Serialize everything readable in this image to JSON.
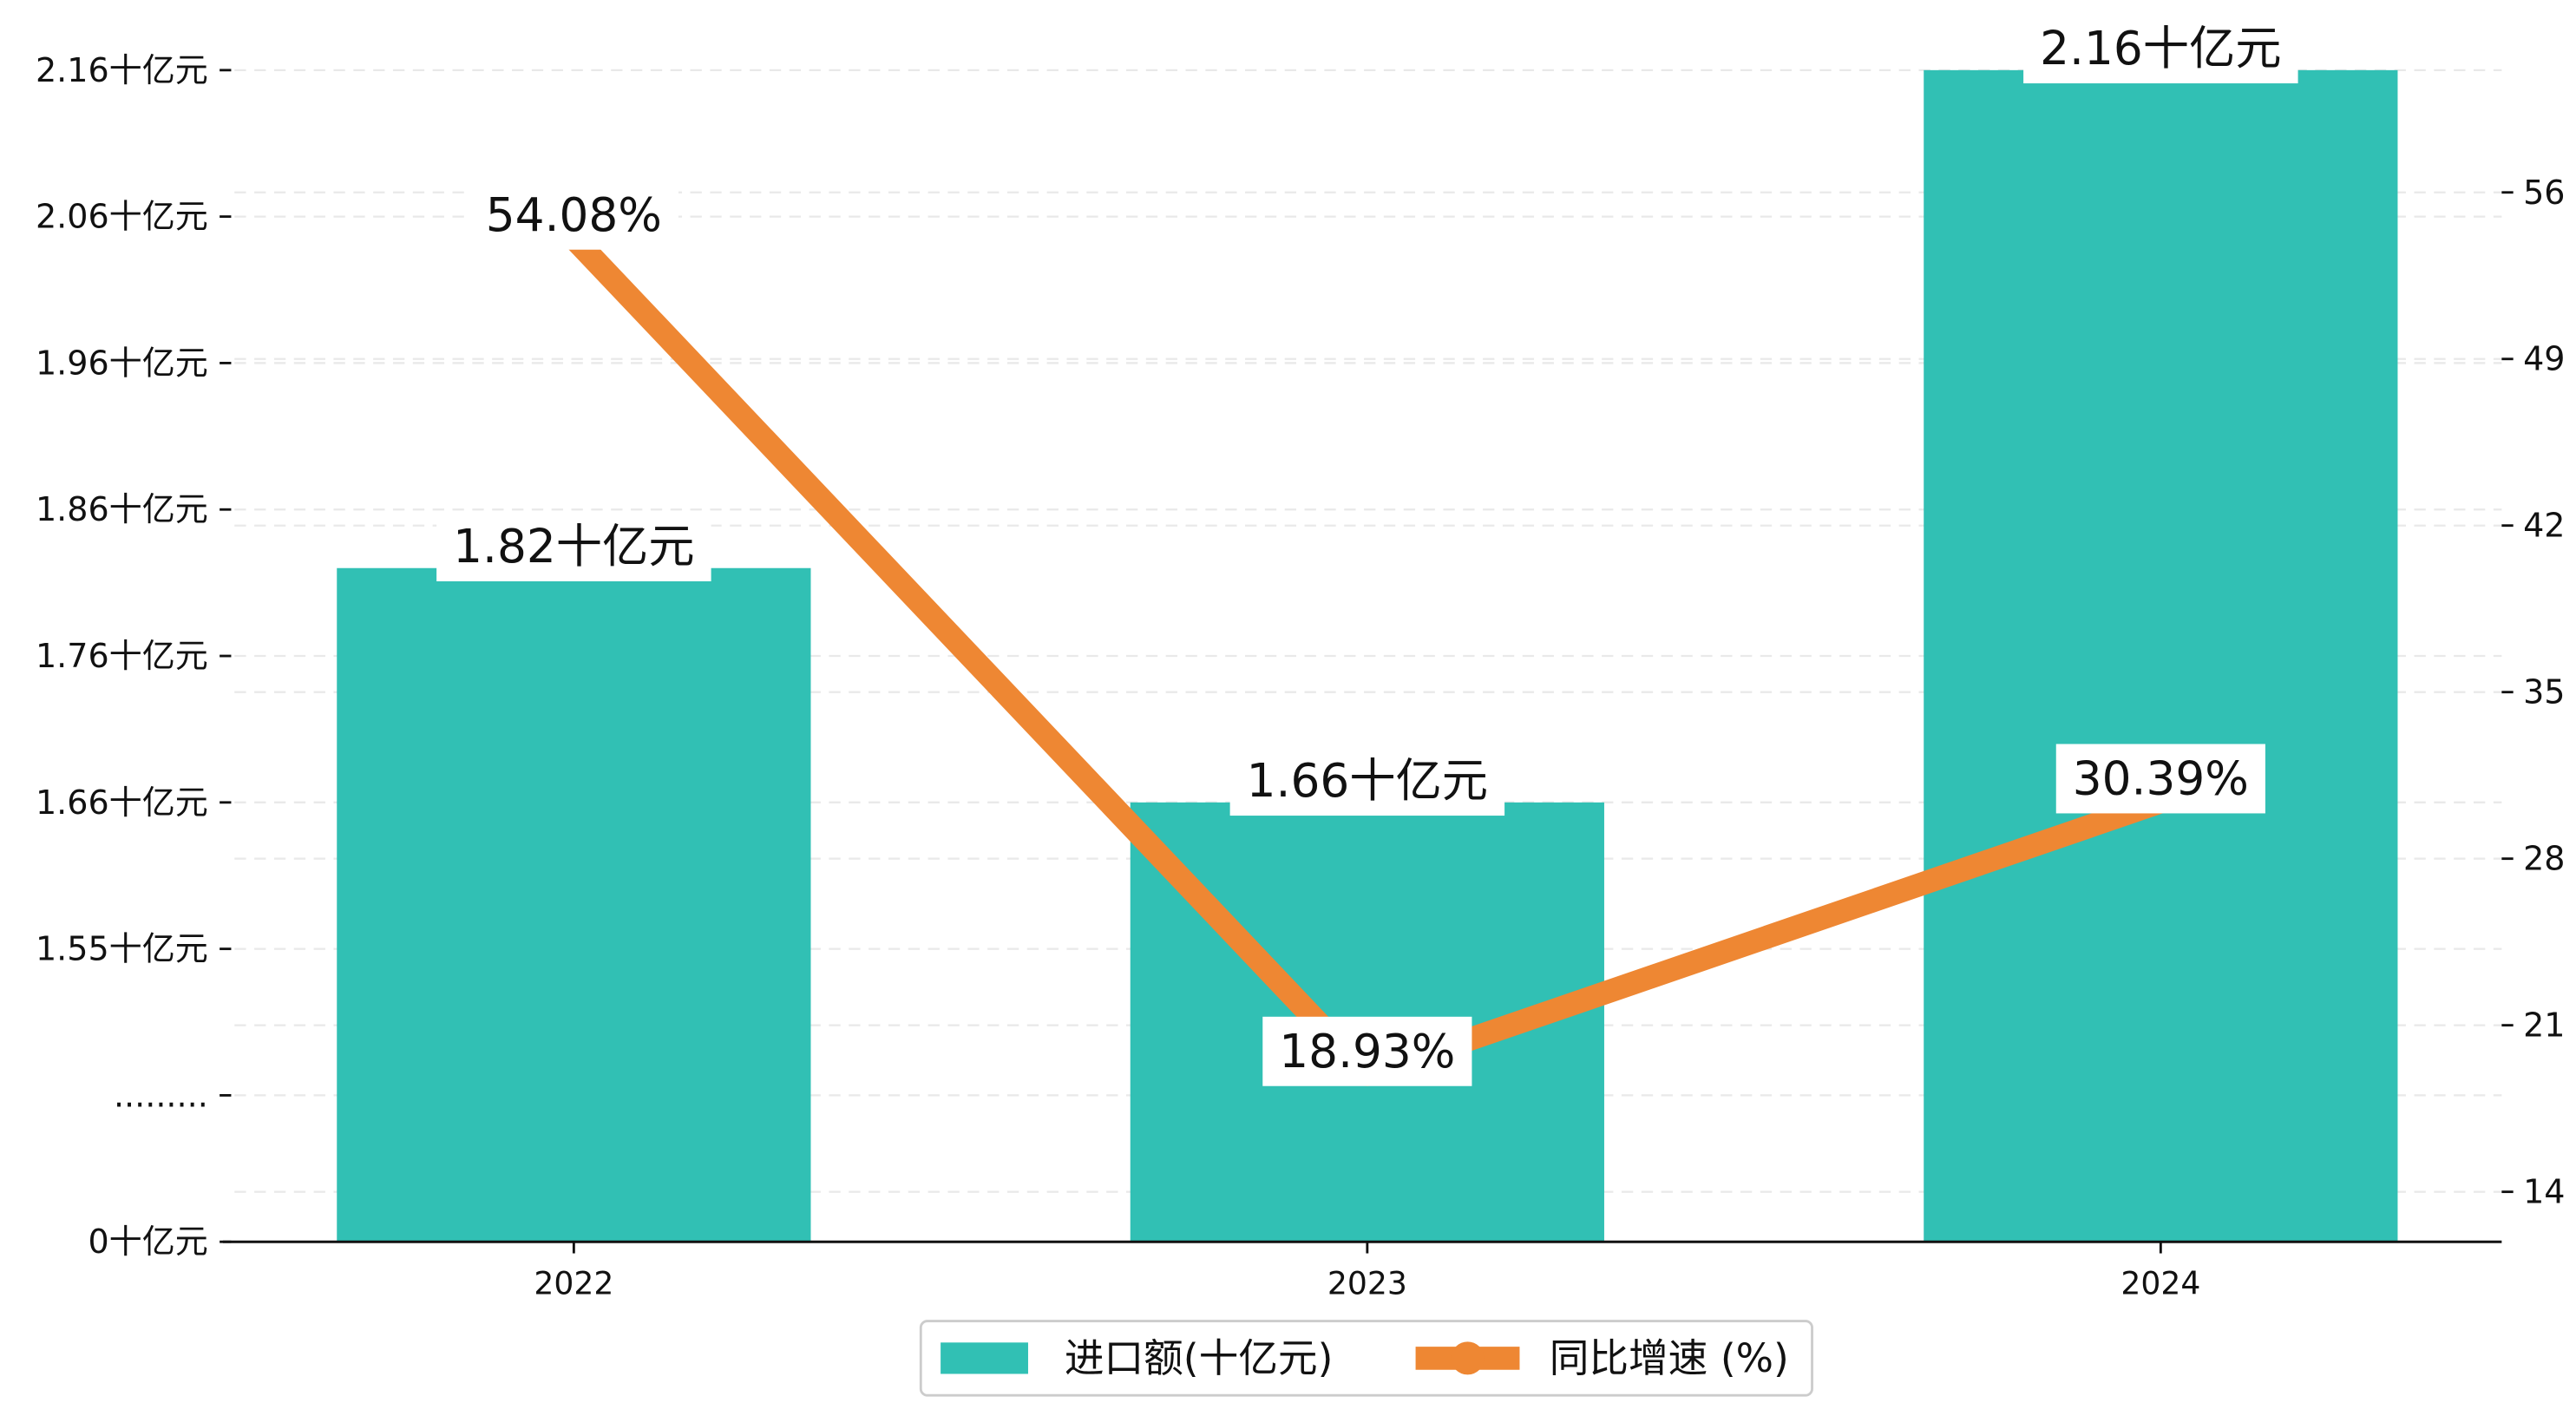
{
  "chart_data": {
    "type": "bar+line",
    "categories": [
      "2022",
      "2023",
      "2024"
    ],
    "series": [
      {
        "name": "进口额(十亿元)",
        "type": "bar",
        "axis": "left",
        "values": [
          1.82,
          1.66,
          2.16
        ],
        "labels": [
          "1.82十亿元",
          "1.66十亿元",
          "2.16十亿元"
        ],
        "color": "#31c0b4"
      },
      {
        "name": "同比增速 (%)",
        "type": "line",
        "axis": "right",
        "values": [
          54.08,
          18.93,
          30.39
        ],
        "labels": [
          "54.08%",
          "18.93%",
          "30.39%"
        ],
        "color": "#ee8733"
      }
    ],
    "y_left": {
      "ticks": [
        "2.16十亿元",
        "2.06十亿元",
        "1.96十亿元",
        "1.86十亿元",
        "1.76十亿元",
        "1.66十亿元",
        "1.55十亿元",
        ".........",
        "0十亿元"
      ],
      "range": [
        1.36,
        2.2
      ],
      "broken": true
    },
    "y_right": {
      "ticks": [
        56,
        49,
        42,
        35,
        28,
        21,
        14
      ],
      "range": [
        11.9,
        63.6
      ]
    },
    "grid": "dashed-horizontal",
    "legend": "bottom-center"
  }
}
